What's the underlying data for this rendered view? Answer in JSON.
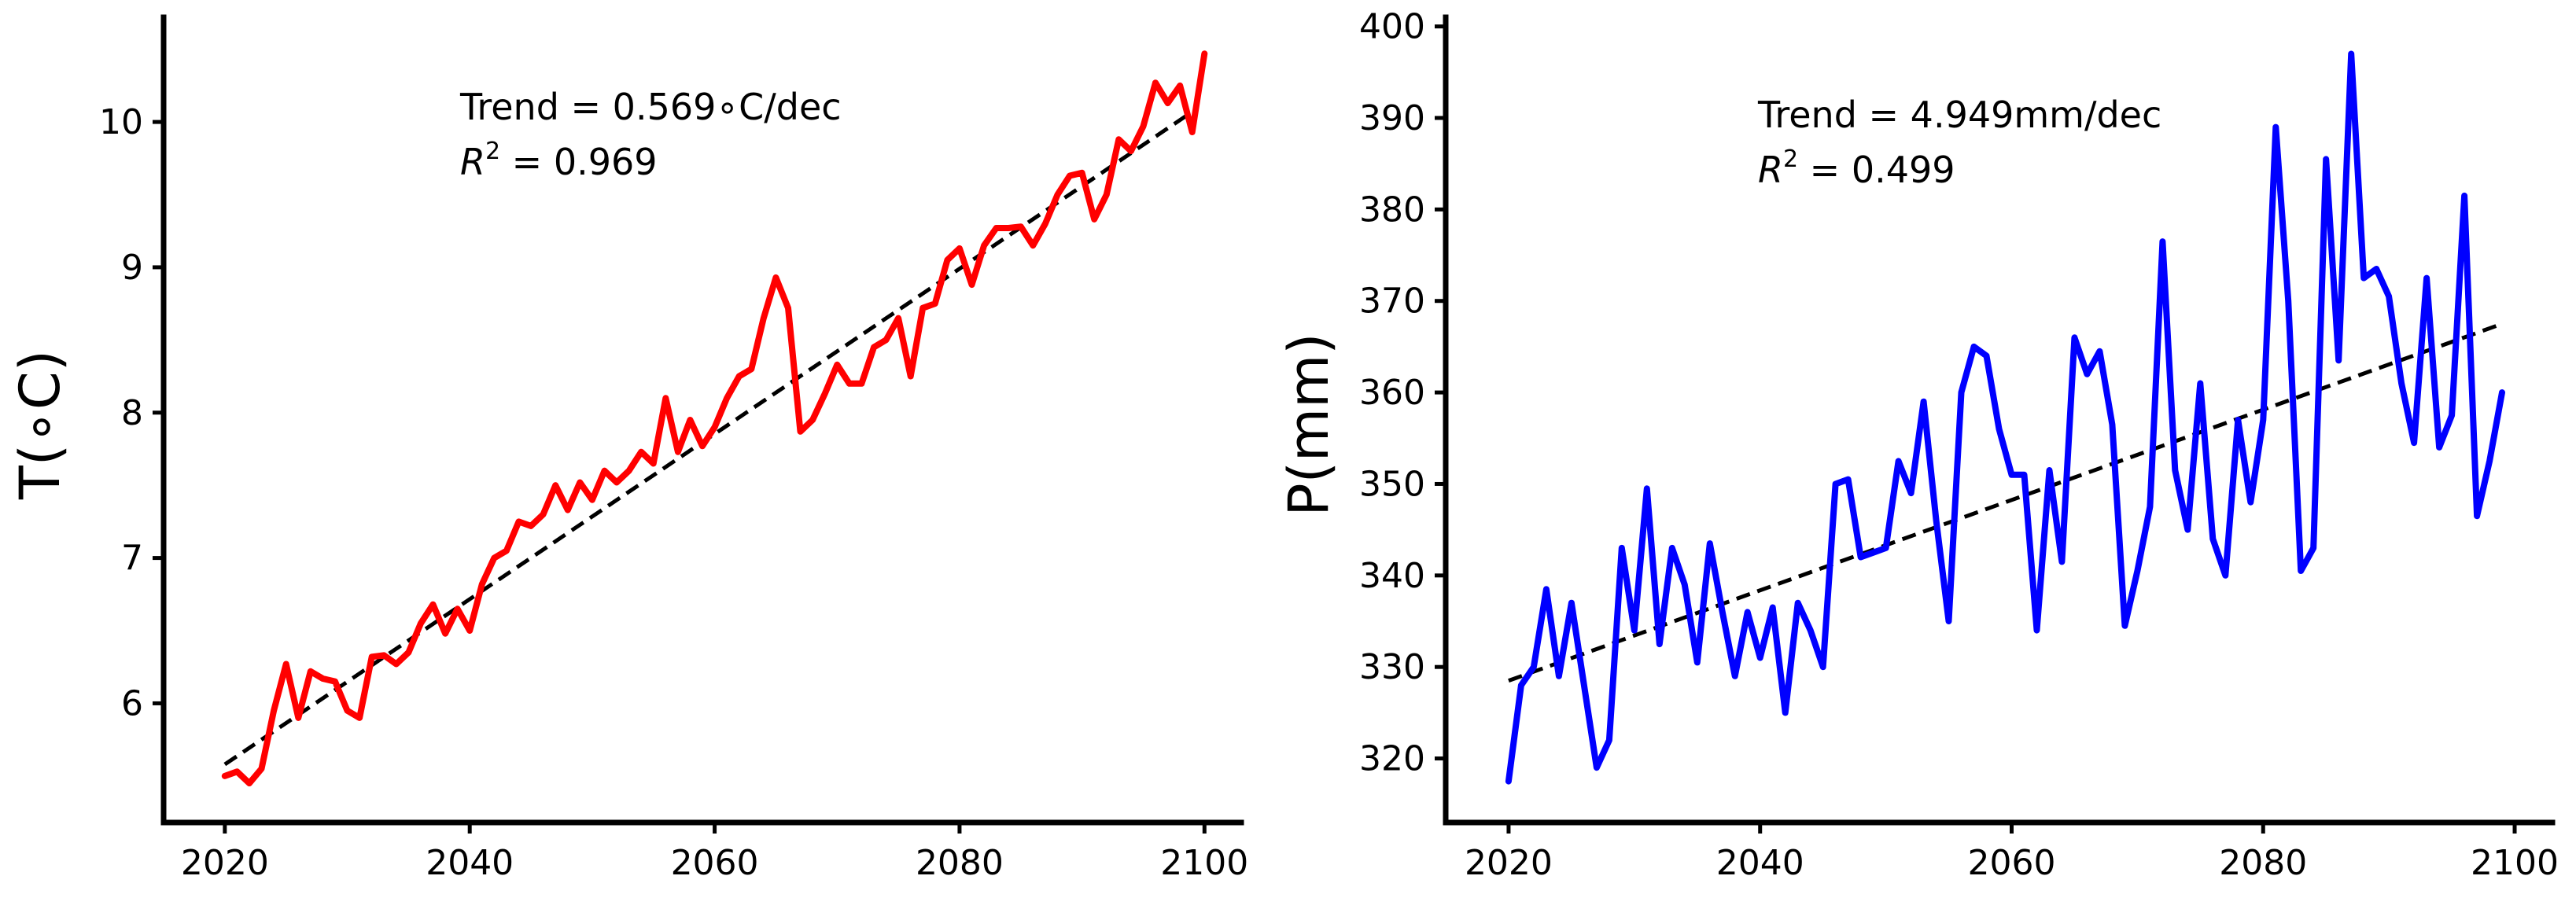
{
  "chart_data": [
    {
      "type": "line",
      "ylabel": "T(∘C)",
      "xlabel": "",
      "xlim": [
        2015,
        2103
      ],
      "ylim": [
        5.18,
        10.72
      ],
      "xticks": [
        2020,
        2040,
        2060,
        2080,
        2100
      ],
      "yticks": [
        6,
        7,
        8,
        9,
        10
      ],
      "x_start": 2020,
      "series": [
        {
          "name": "temperature",
          "color": "#ff0000",
          "values": [
            5.5,
            5.53,
            5.45,
            5.55,
            5.95,
            6.27,
            5.9,
            6.22,
            6.17,
            6.15,
            5.95,
            5.9,
            6.32,
            6.33,
            6.27,
            6.35,
            6.55,
            6.68,
            6.48,
            6.65,
            6.5,
            6.82,
            7.0,
            7.05,
            7.25,
            7.22,
            7.3,
            7.5,
            7.33,
            7.52,
            7.4,
            7.6,
            7.52,
            7.6,
            7.73,
            7.65,
            8.1,
            7.73,
            7.95,
            7.77,
            7.9,
            8.1,
            8.25,
            8.3,
            8.65,
            8.93,
            8.72,
            7.87,
            7.95,
            8.13,
            8.33,
            8.2,
            8.2,
            8.45,
            8.5,
            8.65,
            8.25,
            8.72,
            8.75,
            9.05,
            9.13,
            8.88,
            9.15,
            9.27,
            9.27,
            9.28,
            9.15,
            9.3,
            9.5,
            9.63,
            9.65,
            9.33,
            9.5,
            9.88,
            9.8,
            9.97,
            10.27,
            10.13,
            10.25,
            9.93,
            10.47
          ]
        }
      ],
      "trend": {
        "start": [
          2020,
          5.58
        ],
        "end": [
          2099,
          10.07
        ]
      },
      "annotation": {
        "line1": "Trend = 0.569∘C/dec",
        "r2_symbol": "R",
        "r2_exp": "2",
        "r2_value": " = 0.969"
      }
    },
    {
      "type": "line",
      "ylabel": "P(mm)",
      "xlabel": "",
      "xlim": [
        2015,
        2103
      ],
      "ylim": [
        313,
        401
      ],
      "xticks": [
        2020,
        2040,
        2060,
        2080,
        2100
      ],
      "yticks": [
        320,
        330,
        340,
        350,
        360,
        370,
        380,
        390,
        400
      ],
      "x_start": 2020,
      "series": [
        {
          "name": "precipitation",
          "color": "#0000ff",
          "values": [
            317.5,
            328,
            330,
            338.5,
            329,
            337,
            328,
            319,
            322,
            343,
            334,
            349.5,
            332.5,
            343,
            339,
            330.5,
            343.5,
            336,
            329,
            336,
            331,
            336.5,
            325,
            337,
            334,
            330,
            350,
            350.5,
            342,
            342.5,
            343,
            352.5,
            349,
            359,
            346,
            335,
            360,
            365,
            364,
            356,
            351,
            351,
            334,
            351.5,
            341.5,
            366,
            362,
            364.5,
            356.5,
            334.5,
            340.5,
            347.5,
            376.5,
            351.5,
            345,
            361,
            344,
            340,
            357,
            348,
            357,
            389,
            370,
            340.5,
            343,
            385.5,
            363.5,
            397,
            372.5,
            373.5,
            370.5,
            361,
            354.5,
            372.5,
            354,
            357.5,
            381.5,
            346.5,
            352.5,
            360
          ]
        }
      ],
      "trend": {
        "start": [
          2020,
          328.5
        ],
        "end": [
          2099,
          367.5
        ]
      },
      "annotation": {
        "line1": "Trend = 4.949mm/dec",
        "r2_symbol": "R",
        "r2_exp": "2",
        "r2_value": " = 0.499"
      }
    }
  ]
}
